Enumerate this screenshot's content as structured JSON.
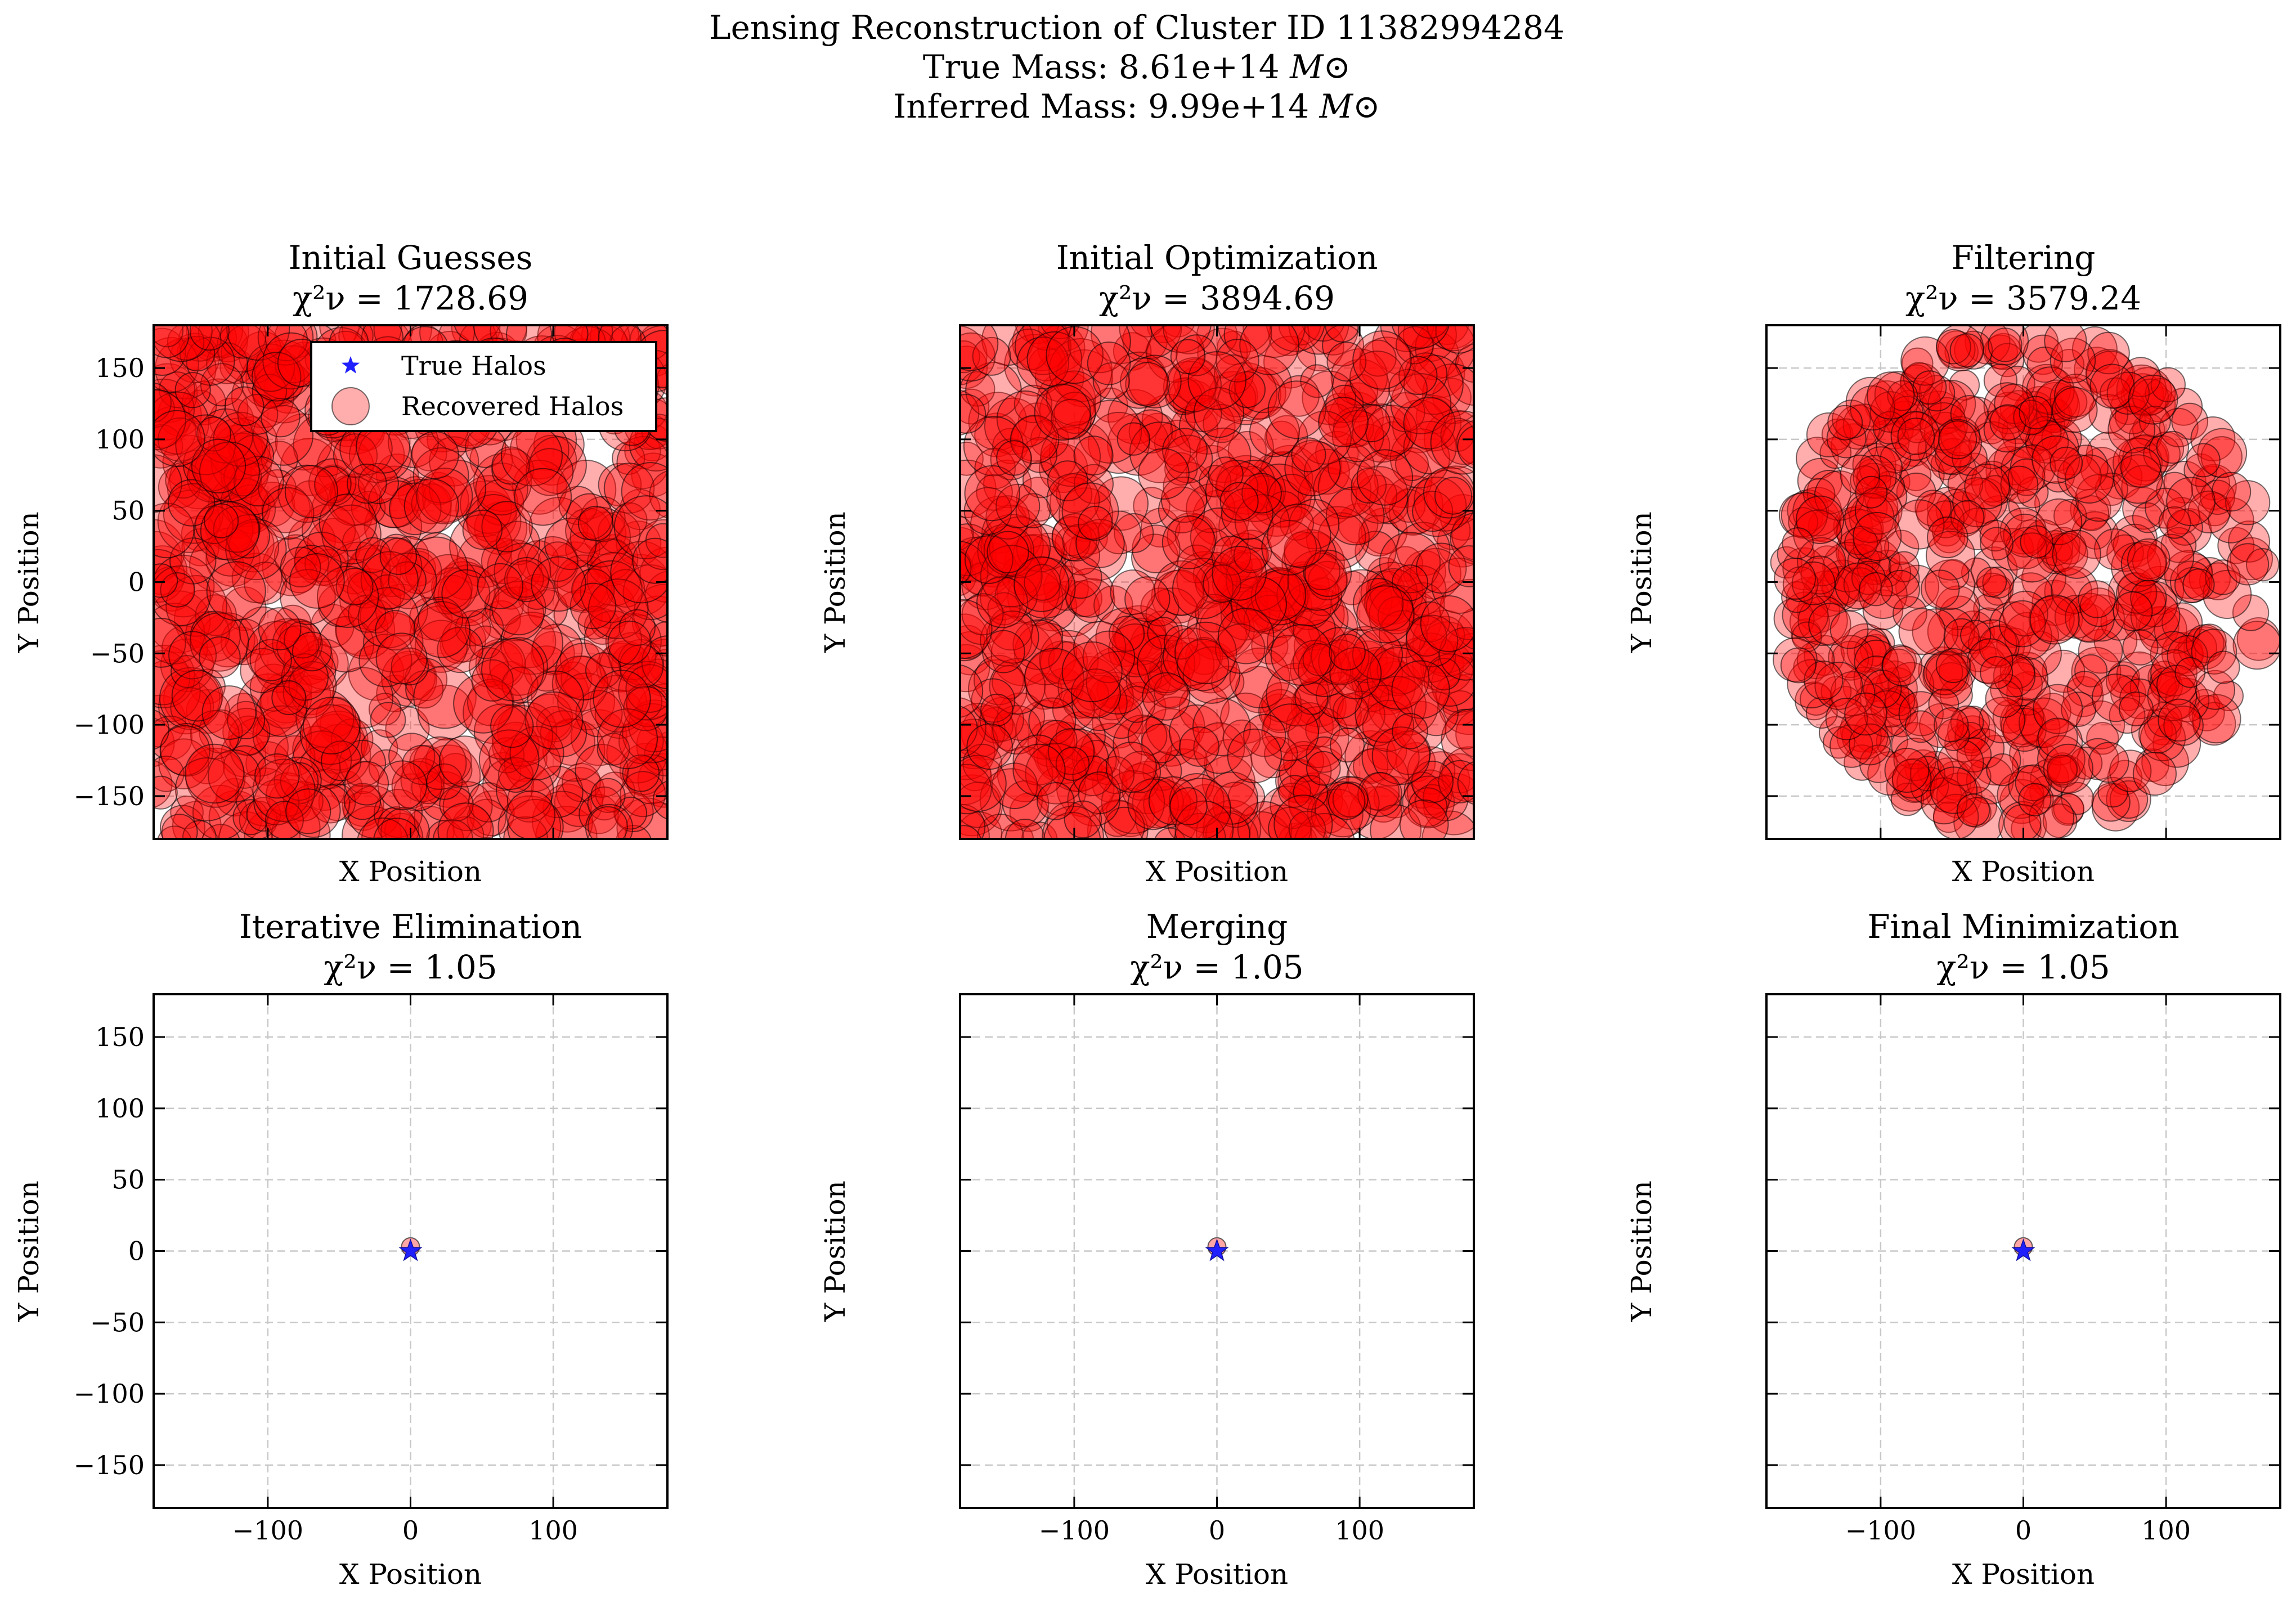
{
  "figure": {
    "title_line1": "Lensing Reconstruction of Cluster ID 11382994284",
    "title_line2_prefix": "True Mass: 8.61e+14 ",
    "title_line3_prefix": "Inferred Mass: 9.99e+14 ",
    "mass_unit": "M⊙"
  },
  "colors": {
    "recovered": "#ff0000",
    "true_halo": "#2020ff",
    "grid": "#c8c8c8"
  },
  "chart_data": [
    {
      "type": "scatter",
      "title": "Initial Guesses",
      "chi2_label": "χ²ν = 1728.69",
      "xlabel": "X Position",
      "ylabel": "Y Position",
      "xlim": [
        -180,
        180
      ],
      "ylim": [
        -180,
        180
      ],
      "grid": true,
      "legend": {
        "placement": "top-center",
        "entries": [
          "True Halos",
          "Recovered Halos"
        ]
      },
      "distribution": "dense cloud of overlapping recovered halos filling the panel",
      "xticks": [],
      "yticks": [
        "−150",
        "−100",
        "−50",
        "0",
        "50",
        "100",
        "150"
      ],
      "true_halos": [
        {
          "x": 0,
          "y": 0
        }
      ],
      "recovered_halos": [
        {
          "x": 0,
          "y": 0
        }
      ]
    },
    {
      "type": "scatter",
      "title": "Initial Optimization",
      "chi2_label": "χ²ν = 3894.69",
      "xlabel": "X Position",
      "ylabel": "Y Position",
      "xlim": [
        -180,
        180
      ],
      "ylim": [
        -180,
        180
      ],
      "grid": true,
      "distribution": "dense cloud of overlapping recovered halos filling the panel",
      "xticks": [],
      "yticks": [],
      "true_halos": [
        {
          "x": 0,
          "y": 0
        }
      ],
      "recovered_halos": [
        {
          "x": 0,
          "y": 0
        }
      ]
    },
    {
      "type": "scatter",
      "title": "Filtering",
      "chi2_label": "χ²ν = 3579.24",
      "xlabel": "X Position",
      "ylabel": "Y Position",
      "xlim": [
        -180,
        180
      ],
      "ylim": [
        -180,
        180
      ],
      "grid": true,
      "distribution": "circular cloud of recovered halos, radius about 170",
      "xticks": [],
      "yticks": [],
      "true_halos": [
        {
          "x": 0,
          "y": 0
        }
      ],
      "recovered_halos": [
        {
          "x": 0,
          "y": 0
        }
      ]
    },
    {
      "type": "scatter",
      "title": "Iterative Elimination",
      "chi2_label": "χ²ν = 1.05",
      "xlabel": "X Position",
      "ylabel": "Y Position",
      "xlim": [
        -180,
        180
      ],
      "ylim": [
        -180,
        180
      ],
      "grid": true,
      "xticks": [
        "−100",
        "0",
        "100"
      ],
      "yticks": [
        "−150",
        "−100",
        "−50",
        "0",
        "50",
        "100",
        "150"
      ],
      "true_halos": [
        {
          "x": 0,
          "y": 0
        }
      ],
      "recovered_halos": [
        {
          "x": 0,
          "y": 3
        }
      ]
    },
    {
      "type": "scatter",
      "title": "Merging",
      "chi2_label": "χ²ν = 1.05",
      "xlabel": "X Position",
      "ylabel": "Y Position",
      "xlim": [
        -180,
        180
      ],
      "ylim": [
        -180,
        180
      ],
      "grid": true,
      "xticks": [
        "−100",
        "0",
        "100"
      ],
      "yticks": [],
      "true_halos": [
        {
          "x": 0,
          "y": 0
        }
      ],
      "recovered_halos": [
        {
          "x": 0,
          "y": 3
        }
      ]
    },
    {
      "type": "scatter",
      "title": "Final Minimization",
      "chi2_label": "χ²ν = 1.05",
      "xlabel": "X Position",
      "ylabel": "Y Position",
      "xlim": [
        -180,
        180
      ],
      "ylim": [
        -180,
        180
      ],
      "grid": true,
      "xticks": [
        "−100",
        "0",
        "100"
      ],
      "yticks": [],
      "true_halos": [
        {
          "x": 0,
          "y": 0
        }
      ],
      "recovered_halos": [
        {
          "x": 0,
          "y": 3
        }
      ]
    }
  ]
}
